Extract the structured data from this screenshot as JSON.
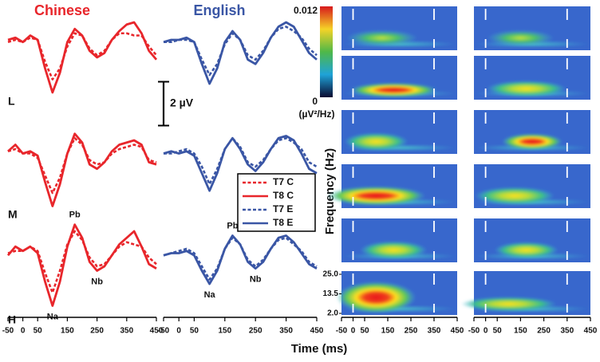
{
  "chart_data": [
    {
      "type": "line",
      "title": "Chinese",
      "color": "#e8262b",
      "xlabel": "Time (ms)",
      "xlim": [
        -50,
        450
      ],
      "xticks": [
        -50,
        0,
        50,
        150,
        250,
        350,
        450
      ],
      "x": [
        -50,
        -25,
        0,
        25,
        50,
        75,
        100,
        125,
        150,
        175,
        200,
        225,
        250,
        275,
        300,
        325,
        350,
        375,
        400,
        425,
        450
      ],
      "ylim": [
        -2.5,
        1.5
      ],
      "scale_bar": {
        "value": 2,
        "label": "2 µV"
      },
      "legend": [
        {
          "name": "T7 C",
          "dash": true
        },
        {
          "name": "T8 C",
          "dash": false
        }
      ],
      "panels": [
        {
          "label": "L",
          "series": [
            [
              0.2,
              0.3,
              0.2,
              0.4,
              0.3,
              -0.7,
              -1.5,
              -1.0,
              0.0,
              0.6,
              0.5,
              -0.1,
              -0.4,
              -0.2,
              0.3,
              0.6,
              0.6,
              0.5,
              0.5,
              0,
              -0.4
            ],
            [
              0.3,
              0.4,
              0.2,
              0.5,
              0.3,
              -1.0,
              -2.1,
              -1.2,
              0.2,
              0.8,
              0.5,
              -0.2,
              -0.5,
              -0.3,
              0.3,
              0.7,
              1.0,
              1.1,
              0.6,
              -0.2,
              -0.6
            ]
          ]
        },
        {
          "label": "M",
          "series": [
            [
              0.2,
              0.3,
              0.1,
              0.1,
              -0.1,
              -0.9,
              -1.7,
              -1.0,
              0.1,
              0.8,
              0.5,
              -0.2,
              -0.4,
              -0.3,
              0.1,
              0.3,
              0.4,
              0.5,
              0.4,
              -0.2,
              -0.3
            ],
            [
              0.2,
              0.5,
              0.1,
              0.2,
              0.0,
              -1.2,
              -2.3,
              -1.3,
              0.1,
              1.0,
              0.6,
              -0.4,
              -0.6,
              -0.3,
              0.2,
              0.5,
              0.6,
              0.7,
              0.5,
              -0.3,
              -0.4
            ]
          ]
        },
        {
          "label": "H",
          "series": [
            [
              0.1,
              0.2,
              0.2,
              0.4,
              0.2,
              -0.8,
              -1.7,
              -0.7,
              0.5,
              1.1,
              0.7,
              -0.1,
              -0.5,
              -0.4,
              0.0,
              0.4,
              0.6,
              0.5,
              0.4,
              -0.1,
              -0.4
            ],
            [
              0.0,
              0.4,
              0.2,
              0.4,
              0.1,
              -1.2,
              -2.3,
              -1.2,
              0.4,
              1.4,
              0.8,
              -0.3,
              -0.7,
              -0.5,
              0.0,
              0.5,
              0.8,
              1.1,
              0.4,
              -0.4,
              -0.6
            ]
          ]
        }
      ],
      "annotations": [
        {
          "text": "Na",
          "x": 100
        },
        {
          "text": "Pb",
          "x": 175
        },
        {
          "text": "Nb",
          "x": 250
        }
      ]
    },
    {
      "type": "line",
      "title": "English",
      "color": "#3a56a5",
      "xlim": [
        -50,
        450
      ],
      "xticks": [
        -50,
        0,
        50,
        150,
        250,
        350,
        450
      ],
      "x": [
        -50,
        -25,
        0,
        25,
        50,
        75,
        100,
        125,
        150,
        175,
        200,
        225,
        250,
        275,
        300,
        325,
        350,
        375,
        400,
        425,
        450
      ],
      "ylim": [
        -2.5,
        1.5
      ],
      "legend": [
        {
          "name": "T7 E",
          "dash": true
        },
        {
          "name": "T8 E",
          "dash": false
        }
      ],
      "panels": [
        {
          "label": "L",
          "series": [
            [
              0.2,
              0.2,
              0.3,
              0.3,
              0.2,
              -0.6,
              -1.3,
              -0.8,
              0.1,
              0.6,
              0.3,
              -0.4,
              -0.6,
              -0.2,
              0.4,
              0.8,
              0.9,
              0.7,
              0.4,
              -0.1,
              -0.4
            ],
            [
              0.2,
              0.3,
              0.3,
              0.4,
              0.2,
              -0.8,
              -1.7,
              -1.0,
              0.2,
              0.7,
              0.3,
              -0.6,
              -0.8,
              -0.3,
              0.4,
              0.9,
              1.1,
              0.9,
              0.3,
              -0.3,
              -0.6
            ]
          ]
        },
        {
          "label": "M",
          "series": [
            [
              0.1,
              0.1,
              0.2,
              0.3,
              0.1,
              -0.5,
              -1.3,
              -0.6,
              0.3,
              0.8,
              0.4,
              -0.3,
              -0.5,
              -0.2,
              0.3,
              0.7,
              0.8,
              0.6,
              0.3,
              -0.3,
              -0.5
            ],
            [
              0.1,
              0.2,
              0.1,
              0.2,
              0.0,
              -0.8,
              -1.6,
              -0.8,
              0.3,
              0.8,
              0.3,
              -0.4,
              -0.7,
              -0.3,
              0.3,
              0.8,
              0.9,
              0.7,
              0.1,
              -0.6,
              -0.8
            ]
          ]
        },
        {
          "label": "H",
          "series": [
            [
              0.0,
              0.1,
              0.2,
              0.3,
              0.1,
              -0.5,
              -1.1,
              -0.6,
              0.3,
              0.8,
              0.5,
              -0.2,
              -0.5,
              -0.2,
              0.3,
              0.7,
              0.8,
              0.5,
              0.2,
              -0.3,
              -0.5
            ],
            [
              0.0,
              0.1,
              0.1,
              0.2,
              0.0,
              -0.7,
              -1.3,
              -0.7,
              0.3,
              0.9,
              0.5,
              -0.3,
              -0.6,
              -0.3,
              0.3,
              0.8,
              0.9,
              0.6,
              0.1,
              -0.4,
              -0.6
            ]
          ]
        }
      ],
      "annotations": [
        {
          "text": "Na",
          "x": 100
        },
        {
          "text": "Pb",
          "x": 175
        },
        {
          "text": "Nb",
          "x": 250
        }
      ]
    },
    {
      "type": "heatmap",
      "ylabel": "Frequency (Hz)",
      "xlim": [
        -50,
        450
      ],
      "xticks": [
        -50,
        0,
        50,
        150,
        250,
        350,
        450
      ],
      "ylim": [
        2,
        25
      ],
      "yticks": [
        {
          "value": 25,
          "label": "25.0"
        },
        {
          "value": 13.5,
          "label": "13.5"
        },
        {
          "value": 2,
          "label": "2.0"
        }
      ],
      "colorbar": {
        "max": 0.012,
        "min": 0,
        "unit": "(µV²/Hz)"
      }
    }
  ]
}
